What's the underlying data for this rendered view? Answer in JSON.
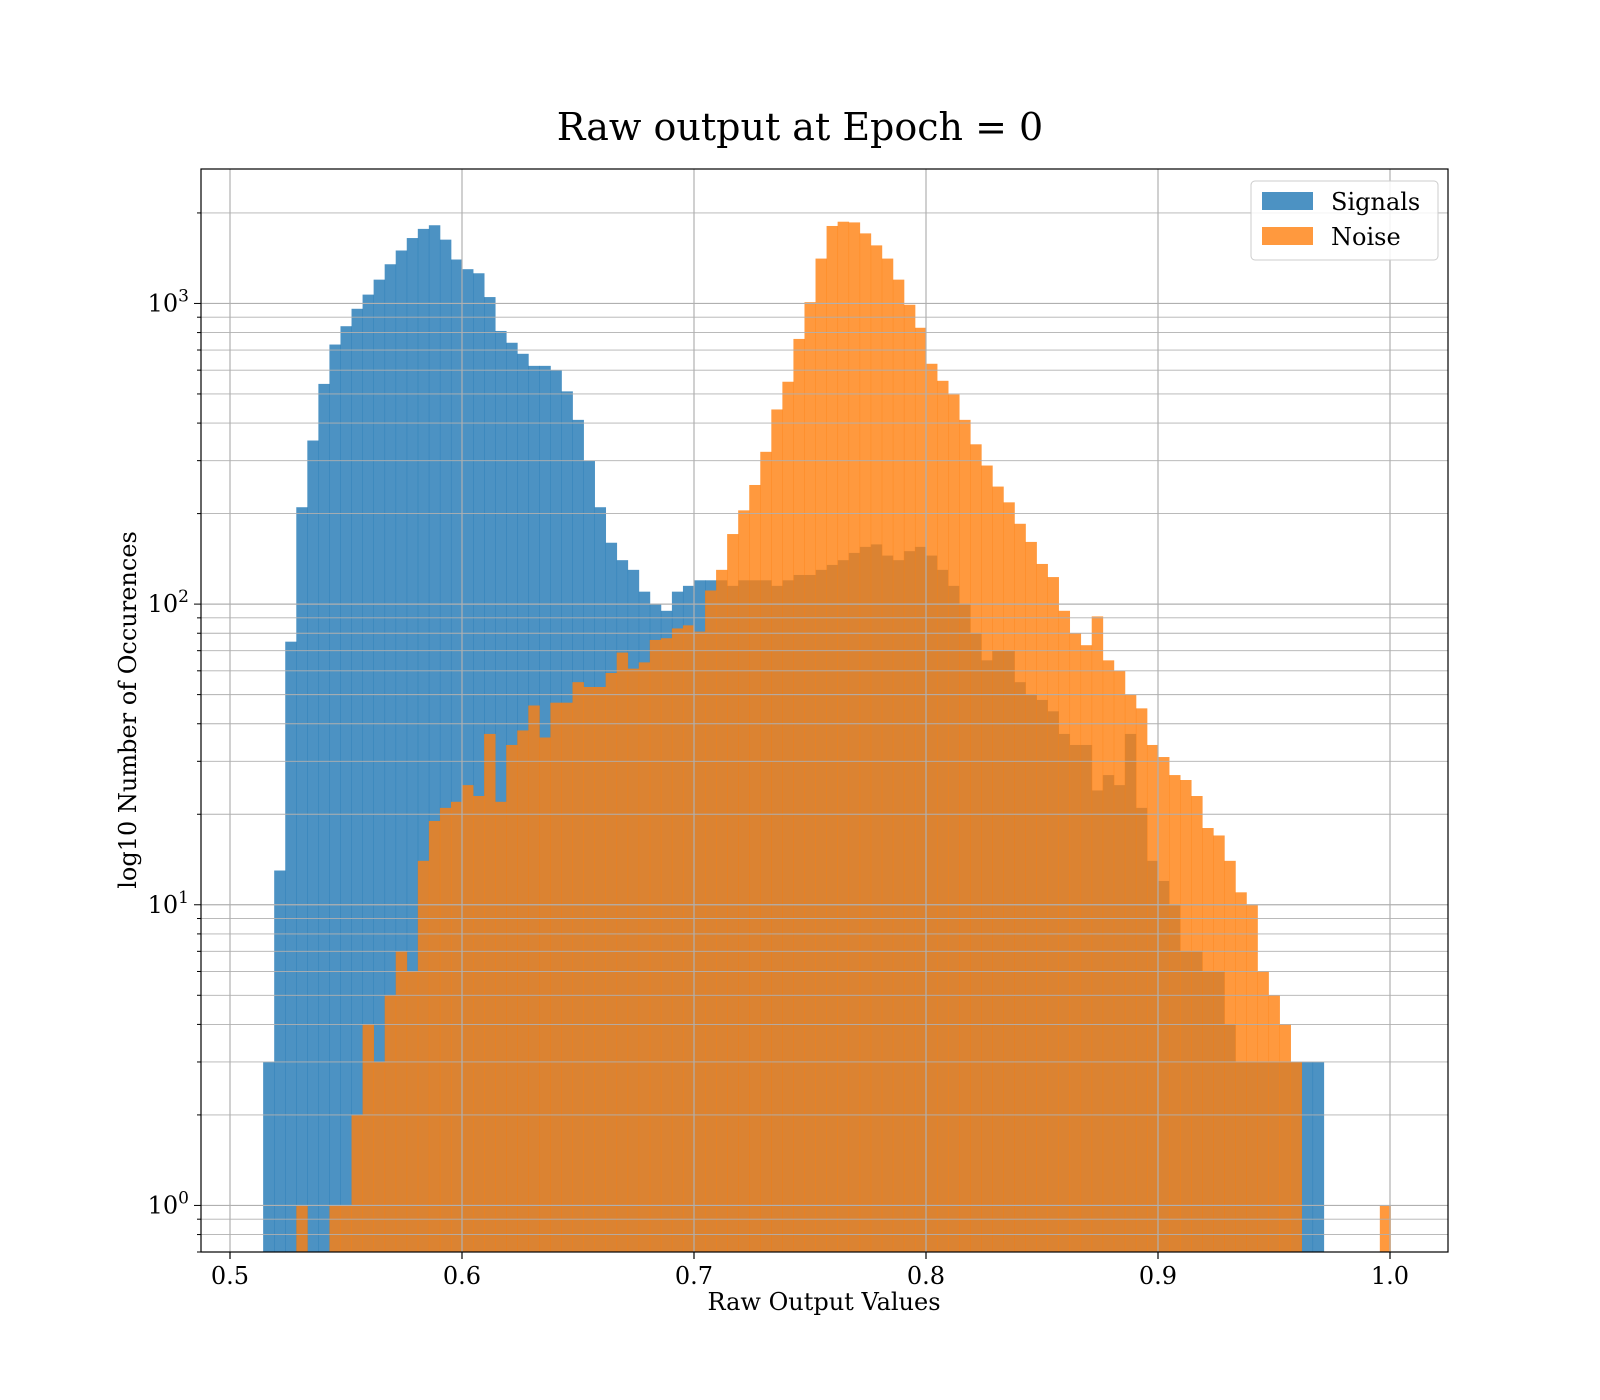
{
  "chart_data": {
    "type": "histogram",
    "title": "Raw output at Epoch = 0",
    "xlabel": "Raw Output Values",
    "ylabel": "log10 Number of Occurences",
    "x_scale": "linear",
    "y_scale": "log",
    "xlim": [
      0.4875,
      1.025
    ],
    "ylim": [
      0.7,
      2800
    ],
    "grid": true,
    "legend_position": "upper right",
    "x_ticks": [
      {
        "value": 0.5,
        "label": "0.5"
      },
      {
        "value": 0.6,
        "label": "0.6"
      },
      {
        "value": 0.7,
        "label": "0.7"
      },
      {
        "value": 0.8,
        "label": "0.8"
      },
      {
        "value": 0.9,
        "label": "0.9"
      },
      {
        "value": 1.0,
        "label": "1.0"
      }
    ],
    "y_ticks": [
      {
        "value": 1,
        "base": "10",
        "exp": "0"
      },
      {
        "value": 10,
        "base": "10",
        "exp": "1"
      },
      {
        "value": 100,
        "base": "10",
        "exp": "2"
      },
      {
        "value": 1000,
        "base": "10",
        "exp": "3"
      }
    ],
    "bin_start": 0.5,
    "bin_width": 0.0047619,
    "series": [
      {
        "name": "Signals",
        "color": "#1f77b4",
        "alpha": 0.8,
        "values": [
          0,
          0,
          0,
          3,
          13,
          75,
          210,
          350,
          540,
          730,
          840,
          960,
          1070,
          1200,
          1350,
          1500,
          1650,
          1770,
          1820,
          1630,
          1400,
          1300,
          1260,
          1050,
          810,
          740,
          680,
          620,
          620,
          600,
          510,
          410,
          300,
          210,
          160,
          140,
          130,
          110,
          100,
          95,
          110,
          115,
          120,
          120,
          120,
          115,
          120,
          120,
          120,
          115,
          120,
          125,
          125,
          130,
          135,
          140,
          148,
          155,
          158,
          145,
          140,
          150,
          155,
          145,
          130,
          115,
          100,
          80,
          65,
          70,
          70,
          55,
          50,
          48,
          44,
          37,
          34,
          34,
          24,
          27,
          25,
          37,
          21,
          14,
          12,
          10,
          7,
          7,
          6,
          6,
          4,
          3,
          3,
          3,
          3,
          3,
          3,
          3,
          3,
          0,
          0,
          0,
          0,
          0,
          0,
          0
        ]
      },
      {
        "name": "Noise",
        "color": "#ff7f0e",
        "alpha": 0.8,
        "values": [
          0,
          0,
          0,
          0,
          0,
          0,
          1,
          0,
          0,
          1,
          1,
          2,
          4,
          3,
          5,
          7,
          6,
          14,
          19,
          21,
          22,
          25,
          23,
          37,
          22,
          34,
          38,
          46,
          36,
          47,
          47,
          55,
          53,
          53,
          59,
          69,
          61,
          64,
          76,
          77,
          83,
          85,
          81,
          111,
          130,
          171,
          205,
          249,
          321,
          444,
          549,
          762,
          1010,
          1410,
          1810,
          1870,
          1860,
          1710,
          1560,
          1410,
          1200,
          990,
          830,
          630,
          553,
          498,
          410,
          340,
          289,
          246,
          218,
          185,
          161,
          136,
          123,
          95,
          80,
          73,
          91,
          65,
          60,
          50,
          45,
          34,
          31,
          27,
          26,
          23,
          18,
          17,
          14,
          11,
          10,
          6,
          5,
          4,
          3,
          0,
          0,
          0,
          0,
          0,
          0,
          0,
          0,
          0
        ]
      }
    ],
    "extra_noise_bar": {
      "x": 0.998,
      "value": 1
    }
  }
}
